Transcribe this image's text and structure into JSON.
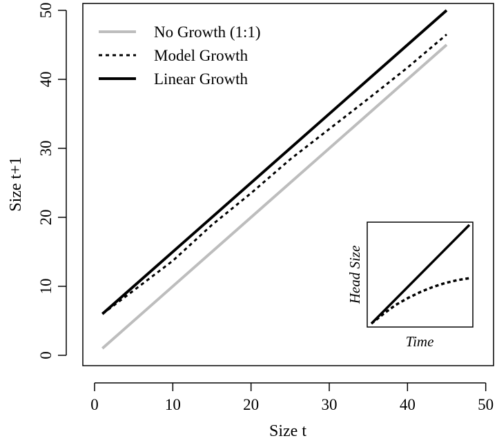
{
  "chart_data": {
    "type": "line",
    "xlabel": "Size t",
    "ylabel": "Size t+1",
    "xlim": [
      -1.5,
      51
    ],
    "ylim": [
      -1.5,
      51
    ],
    "x_ticks": [
      0,
      10,
      20,
      30,
      40,
      50
    ],
    "y_ticks": [
      0,
      10,
      20,
      30,
      40,
      50
    ],
    "grid": false,
    "legend_position": "top-left",
    "series": [
      {
        "name": "No Growth (1:1)",
        "style": "solid",
        "color": "#bdbdbd",
        "x": [
          1,
          45
        ],
        "y": [
          1,
          45
        ]
      },
      {
        "name": "Model Growth",
        "style": "dashed",
        "color": "#000000",
        "x": [
          1,
          5,
          10,
          15,
          20,
          25,
          30,
          35,
          40,
          45
        ],
        "y": [
          6,
          9.4,
          13.7,
          18.9,
          23.5,
          28.4,
          32.8,
          37.2,
          41.7,
          46.5
        ]
      },
      {
        "name": "Linear Growth",
        "style": "solid",
        "color": "#000000",
        "x": [
          1,
          45
        ],
        "y": [
          6,
          50
        ]
      }
    ],
    "inset": {
      "xlabel": "Time",
      "ylabel": "Head Size",
      "series": [
        {
          "name": "Linear Growth",
          "style": "solid",
          "x": [
            0,
            0.25,
            0.5,
            0.75,
            1
          ],
          "y": [
            0,
            0.25,
            0.5,
            0.75,
            1
          ]
        },
        {
          "name": "Model Growth",
          "style": "dashed",
          "x": [
            0,
            0.125,
            0.25,
            0.375,
            0.5,
            0.625,
            0.75,
            0.875,
            1
          ],
          "y": [
            0,
            0.1,
            0.19,
            0.26,
            0.32,
            0.37,
            0.41,
            0.44,
            0.46
          ]
        }
      ]
    }
  }
}
